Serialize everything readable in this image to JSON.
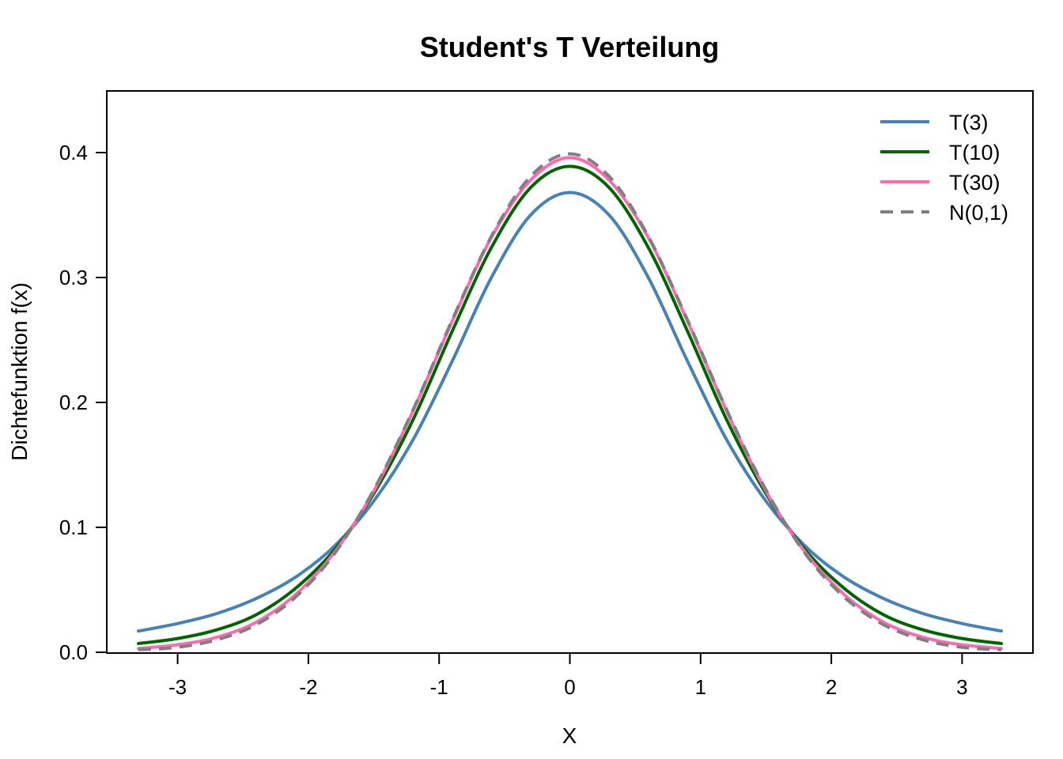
{
  "chart_data": {
    "type": "line",
    "title": "Student's T Verteilung",
    "xlabel": "X",
    "ylabel": "Dichtefunktion f(x)",
    "xlim": [
      -3.3,
      3.3
    ],
    "ylim": [
      0,
      0.45
    ],
    "x_ticks": [
      "-3",
      "-2",
      "-1",
      "0",
      "1",
      "2",
      "3"
    ],
    "y_ticks": [
      "0.0",
      "0.1",
      "0.2",
      "0.3",
      "0.4"
    ],
    "x_tick_values": [
      -3,
      -2,
      -1,
      0,
      1,
      2,
      3
    ],
    "y_tick_values": [
      0,
      0.1,
      0.2,
      0.3,
      0.4
    ],
    "x": [
      -3.3,
      -3.0,
      -2.7,
      -2.4,
      -2.1,
      -1.8,
      -1.5,
      -1.2,
      -0.9,
      -0.6,
      -0.3,
      0.0,
      0.3,
      0.6,
      0.9,
      1.2,
      1.5,
      1.8,
      2.1,
      2.4,
      2.7,
      3.0,
      3.3
    ],
    "grid": false,
    "legend_position": "top-right",
    "series": [
      {
        "name": "T(3)",
        "color": "#4682B4",
        "dash": "solid",
        "values": [
          0.017,
          0.023,
          0.031,
          0.043,
          0.06,
          0.085,
          0.121,
          0.17,
          0.233,
          0.3,
          0.35,
          0.368,
          0.35,
          0.3,
          0.233,
          0.17,
          0.121,
          0.085,
          0.06,
          0.043,
          0.031,
          0.023,
          0.017
        ]
      },
      {
        "name": "T(10)",
        "color": "#006400",
        "dash": "solid",
        "values": [
          0.007,
          0.011,
          0.018,
          0.03,
          0.051,
          0.082,
          0.127,
          0.186,
          0.257,
          0.324,
          0.372,
          0.389,
          0.372,
          0.324,
          0.257,
          0.186,
          0.127,
          0.082,
          0.051,
          0.03,
          0.018,
          0.011,
          0.007
        ]
      },
      {
        "name": "T(30)",
        "color": "#FF69B4",
        "dash": "solid",
        "values": [
          0.003,
          0.006,
          0.012,
          0.024,
          0.046,
          0.08,
          0.129,
          0.193,
          0.265,
          0.332,
          0.378,
          0.396,
          0.378,
          0.332,
          0.265,
          0.193,
          0.129,
          0.08,
          0.046,
          0.024,
          0.012,
          0.006,
          0.003
        ]
      },
      {
        "name": "N(0,1)",
        "color": "#808080",
        "dash": "dashed",
        "values": [
          0.002,
          0.004,
          0.01,
          0.022,
          0.044,
          0.079,
          0.13,
          0.194,
          0.266,
          0.333,
          0.381,
          0.399,
          0.381,
          0.333,
          0.266,
          0.194,
          0.13,
          0.079,
          0.044,
          0.022,
          0.01,
          0.004,
          0.002
        ]
      }
    ]
  }
}
